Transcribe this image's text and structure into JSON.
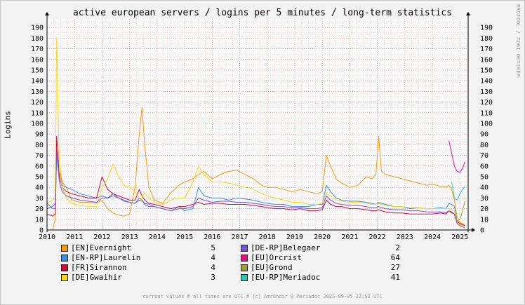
{
  "chart_data": {
    "type": "line",
    "title": "active european servers / logins per 5 minutes / long-term statistics",
    "ylabel": "Logins",
    "xlabel": "",
    "x_ticks": [
      "2010",
      "2011",
      "2012",
      "2013",
      "2014",
      "2015",
      "2016",
      "2017",
      "2018",
      "2019",
      "2020",
      "2021",
      "2022",
      "2023",
      "2024",
      "2025"
    ],
    "y_ticks": [
      0,
      10,
      20,
      30,
      40,
      50,
      60,
      70,
      80,
      90,
      100,
      110,
      120,
      130,
      140,
      150,
      160,
      170,
      180,
      190
    ],
    "xlim": [
      2010.0,
      2025.3
    ],
    "ylim": [
      0,
      198
    ],
    "grid": true,
    "x": [
      2010.0,
      2010.2,
      2010.3,
      2010.35,
      2010.45,
      2010.55,
      2010.7,
      2010.9,
      2011.2,
      2011.5,
      2011.8,
      2012.0,
      2012.2,
      2012.4,
      2012.6,
      2012.8,
      2013.0,
      2013.2,
      2013.35,
      2013.45,
      2013.55,
      2013.7,
      2013.9,
      2014.2,
      2014.5,
      2014.8,
      2015.0,
      2015.3,
      2015.5,
      2015.7,
      2016.0,
      2016.3,
      2016.6,
      2016.9,
      2017.2,
      2017.5,
      2017.8,
      2018.0,
      2018.3,
      2018.6,
      2018.9,
      2019.2,
      2019.5,
      2019.8,
      2020.0,
      2020.15,
      2020.3,
      2020.5,
      2020.7,
      2021.0,
      2021.3,
      2021.6,
      2021.8,
      2021.95,
      2022.05,
      2022.15,
      2022.3,
      2022.6,
      2022.9,
      2023.2,
      2023.5,
      2023.8,
      2024.0,
      2024.3,
      2024.5,
      2024.6,
      2024.7,
      2024.8,
      2024.9,
      2025.0,
      2025.1,
      2025.18
    ],
    "series": [
      {
        "name": "[EN]Evernight",
        "color": "#f39c12",
        "current": "5",
        "values": [
          0,
          0,
          10,
          75,
          60,
          45,
          40,
          28,
          26,
          26,
          25,
          28,
          20,
          16,
          14,
          13,
          15,
          40,
          90,
          115,
          80,
          40,
          28,
          25,
          35,
          42,
          45,
          48,
          52,
          55,
          48,
          52,
          55,
          56,
          52,
          48,
          42,
          40,
          40,
          38,
          36,
          38,
          36,
          34,
          36,
          70,
          60,
          48,
          44,
          40,
          42,
          50,
          48,
          52,
          88,
          55,
          52,
          50,
          48,
          46,
          44,
          42,
          43,
          41,
          40,
          42,
          38,
          28,
          12,
          7,
          6,
          5
        ]
      },
      {
        "name": "[EN-RP]Laurelin",
        "color": "#3b8fe0",
        "current": "4",
        "values": [
          25,
          20,
          20,
          70,
          55,
          42,
          40,
          38,
          34,
          32,
          30,
          32,
          30,
          32,
          30,
          28,
          26,
          25,
          30,
          28,
          25,
          24,
          22,
          20,
          18,
          22,
          18,
          20,
          40,
          32,
          30,
          30,
          28,
          30,
          29,
          28,
          26,
          25,
          24,
          24,
          22,
          22,
          22,
          24,
          24,
          42,
          36,
          30,
          28,
          27,
          27,
          26,
          25,
          24,
          26,
          25,
          24,
          22,
          22,
          20,
          21,
          20,
          20,
          21,
          20,
          25,
          24,
          22,
          8,
          6,
          5,
          4
        ]
      },
      {
        "name": "[FR]Sirannon",
        "color": "#d10a3c",
        "current": "4",
        "values": [
          15,
          13,
          15,
          88,
          50,
          40,
          36,
          34,
          32,
          30,
          30,
          50,
          38,
          34,
          32,
          30,
          28,
          28,
          38,
          32,
          28,
          25,
          24,
          22,
          20,
          22,
          22,
          24,
          26,
          24,
          25,
          25,
          24,
          24,
          24,
          23,
          22,
          21,
          20,
          20,
          19,
          20,
          18,
          18,
          19,
          28,
          24,
          22,
          22,
          20,
          20,
          19,
          18,
          18,
          19,
          18,
          17,
          16,
          16,
          15,
          15,
          15,
          15,
          16,
          15,
          18,
          16,
          15,
          8,
          6,
          5,
          4
        ]
      },
      {
        "name": "[DE]Gwaihir",
        "color": "#f8d81d",
        "current": "3",
        "values": [
          25,
          28,
          30,
          180,
          55,
          40,
          30,
          25,
          23,
          22,
          22,
          40,
          48,
          62,
          50,
          42,
          40,
          36,
          30,
          30,
          35,
          30,
          26,
          24,
          28,
          30,
          30,
          45,
          60,
          52,
          45,
          45,
          44,
          42,
          40,
          38,
          34,
          32,
          30,
          28,
          26,
          26,
          24,
          24,
          25,
          35,
          32,
          28,
          27,
          26,
          26,
          25,
          24,
          24,
          25,
          24,
          23,
          22,
          22,
          21,
          21,
          20,
          20,
          20,
          20,
          20,
          19,
          18,
          6,
          5,
          4,
          3
        ]
      },
      {
        "name": "[DE-RP]Belegaer",
        "color": "#7155d6",
        "current": "2",
        "values": [
          20,
          22,
          25,
          72,
          45,
          36,
          32,
          30,
          28,
          27,
          26,
          30,
          30,
          34,
          30,
          27,
          26,
          25,
          28,
          28,
          24,
          22,
          22,
          20,
          18,
          20,
          20,
          22,
          30,
          28,
          26,
          27,
          27,
          26,
          26,
          25,
          24,
          23,
          22,
          22,
          21,
          21,
          20,
          20,
          21,
          32,
          28,
          25,
          24,
          23,
          23,
          22,
          21,
          21,
          22,
          21,
          20,
          19,
          19,
          18,
          18,
          17,
          17,
          17,
          16,
          18,
          17,
          15,
          6,
          4,
          3,
          2
        ]
      },
      {
        "name": "[EU]Orcrist",
        "color": "#e2107f",
        "current": "64",
        "values": [
          null,
          null,
          null,
          null,
          null,
          null,
          null,
          null,
          null,
          null,
          null,
          null,
          null,
          null,
          null,
          null,
          null,
          null,
          null,
          null,
          null,
          null,
          null,
          null,
          null,
          null,
          null,
          null,
          null,
          null,
          null,
          null,
          null,
          null,
          null,
          null,
          null,
          null,
          null,
          null,
          null,
          null,
          null,
          null,
          null,
          null,
          null,
          null,
          null,
          null,
          null,
          null,
          null,
          null,
          null,
          null,
          null,
          null,
          null,
          null,
          null,
          null,
          null,
          null,
          null,
          84,
          72,
          60,
          55,
          54,
          58,
          64
        ]
      },
      {
        "name": "[EU]Grond",
        "color": "#a1a033",
        "current": "27",
        "values": [
          null,
          null,
          null,
          null,
          null,
          null,
          null,
          null,
          null,
          null,
          null,
          null,
          null,
          null,
          null,
          null,
          null,
          null,
          null,
          null,
          null,
          null,
          null,
          null,
          null,
          null,
          null,
          null,
          null,
          null,
          null,
          null,
          null,
          null,
          null,
          null,
          null,
          null,
          null,
          null,
          null,
          null,
          null,
          null,
          null,
          null,
          null,
          null,
          null,
          null,
          null,
          null,
          null,
          null,
          null,
          null,
          null,
          null,
          null,
          null,
          null,
          null,
          null,
          null,
          null,
          null,
          null,
          12,
          8,
          10,
          18,
          27
        ]
      },
      {
        "name": "[EU-RP]Meriadoc",
        "color": "#2ec7b3",
        "current": "41",
        "values": [
          null,
          null,
          null,
          null,
          null,
          null,
          null,
          null,
          null,
          null,
          null,
          null,
          null,
          null,
          null,
          null,
          null,
          null,
          null,
          null,
          null,
          null,
          null,
          null,
          null,
          null,
          null,
          null,
          null,
          null,
          null,
          null,
          null,
          null,
          null,
          null,
          null,
          null,
          null,
          null,
          null,
          null,
          null,
          null,
          null,
          null,
          null,
          null,
          null,
          null,
          null,
          null,
          null,
          null,
          null,
          null,
          null,
          null,
          null,
          null,
          null,
          null,
          null,
          null,
          null,
          null,
          45,
          30,
          28,
          34,
          38,
          41
        ]
      }
    ],
    "legend_placement": "bottom"
  },
  "watermark": "RRDTOOL / TOBI OETIKER",
  "footer": "current values # all times are UTC # [c] Amrûndir @ Meriadoc 2025-09-05 22:52 UTC"
}
